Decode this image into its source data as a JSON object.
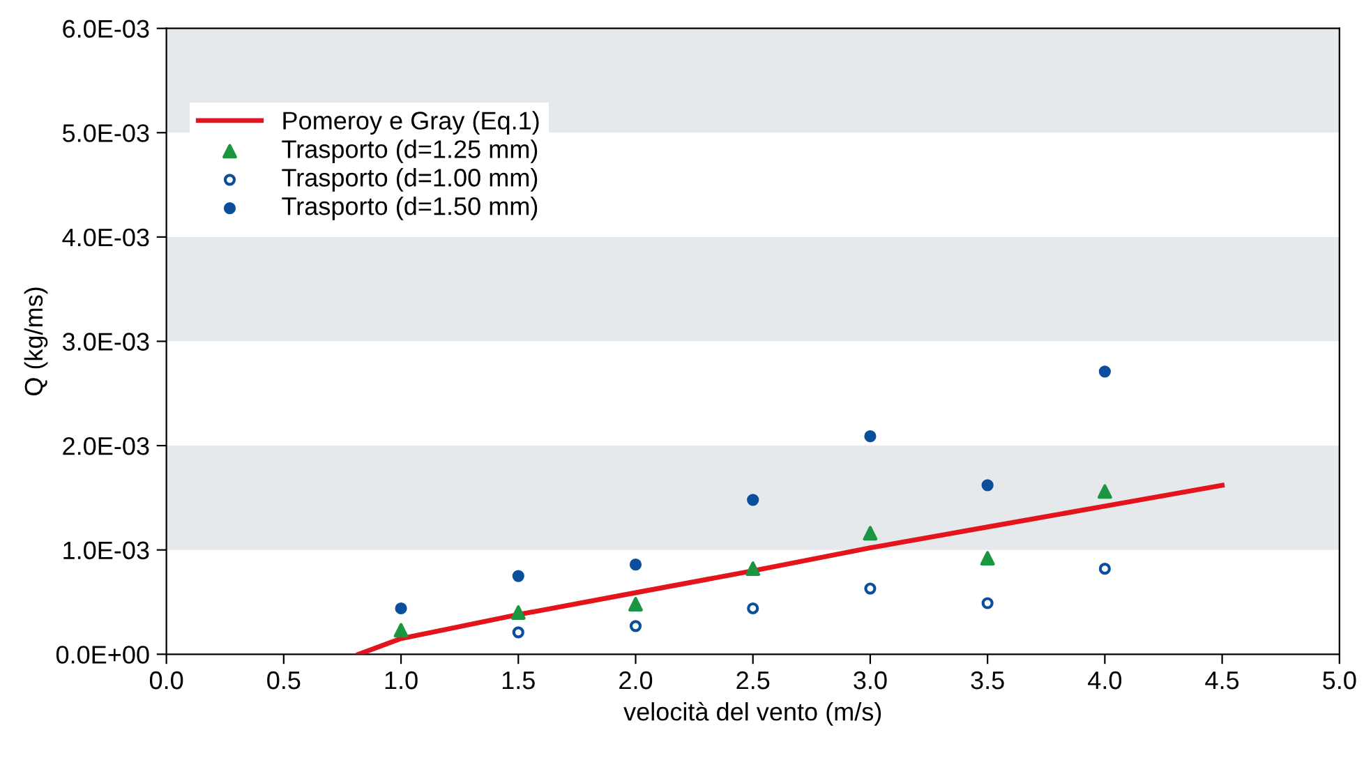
{
  "chart_data": {
    "type": "scatter",
    "xlabel": "velocità del vento (m/s)",
    "ylabel": "Q (kg/ms)",
    "xlim": [
      0,
      5
    ],
    "ylim": [
      0,
      0.006
    ],
    "xticks": [
      {
        "value": 0,
        "label": "0.0"
      },
      {
        "value": 0.5,
        "label": "0.5"
      },
      {
        "value": 1,
        "label": "1.0"
      },
      {
        "value": 1.5,
        "label": "1.5"
      },
      {
        "value": 2,
        "label": "2.0"
      },
      {
        "value": 2.5,
        "label": "2.5"
      },
      {
        "value": 3,
        "label": "3.0"
      },
      {
        "value": 3.5,
        "label": "3.5"
      },
      {
        "value": 4,
        "label": "4.0"
      },
      {
        "value": 4.5,
        "label": "4.5"
      },
      {
        "value": 5,
        "label": "5.0"
      }
    ],
    "yticks": [
      {
        "value": 0,
        "label": "0.0E+00"
      },
      {
        "value": 0.001,
        "label": "1.0E-03"
      },
      {
        "value": 0.002,
        "label": "2.0E-03"
      },
      {
        "value": 0.003,
        "label": "3.0E-03"
      },
      {
        "value": 0.004,
        "label": "4.0E-03"
      },
      {
        "value": 0.005,
        "label": "5.0E-03"
      },
      {
        "value": 0.006,
        "label": "6.0E-03"
      }
    ],
    "bands": [
      {
        "axis": "y",
        "from": 0.001,
        "to": 0.002,
        "color": "#e6e9ec"
      },
      {
        "axis": "y",
        "from": 0.003,
        "to": 0.004,
        "color": "#e6e9ec"
      },
      {
        "axis": "y",
        "from": 0.005,
        "to": 0.006,
        "color": "#e6e9ec"
      }
    ],
    "legend": "top left",
    "grid": false,
    "series": [
      {
        "name": "Pomeroy e Gray (Eq.1)",
        "type": "line",
        "color": "#e3141b",
        "marker": "none",
        "x": [
          0.82,
          1.0,
          1.5,
          2.0,
          2.5,
          3.0,
          3.5,
          4.0,
          4.5
        ],
        "values": [
          0.0,
          0.00015,
          0.00038,
          0.00059,
          0.0008,
          0.00102,
          0.00122,
          0.00142,
          0.00162
        ]
      },
      {
        "name": "Trasporto (d=1.25 mm)",
        "type": "scatter",
        "color": "#1a9640",
        "marker": "triangle",
        "x": [
          1.0,
          1.5,
          2.0,
          2.5,
          3.0,
          3.5,
          4.0
        ],
        "values": [
          0.00023,
          0.0004,
          0.00048,
          0.00082,
          0.00116,
          0.00092,
          0.00156
        ]
      },
      {
        "name": "Trasporto (d=1.00 mm)",
        "type": "scatter",
        "color": "#0b4f9c",
        "marker": "open circle",
        "x": [
          1.5,
          2.0,
          2.5,
          3.0,
          3.5,
          4.0
        ],
        "values": [
          0.00021,
          0.00027,
          0.00044,
          0.00063,
          0.00049,
          0.00082
        ]
      },
      {
        "name": "Trasporto (d=1.50 mm)",
        "type": "scatter",
        "color": "#0b4f9c",
        "marker": "circle",
        "x": [
          1.0,
          1.5,
          2.0,
          2.5,
          3.0,
          3.5,
          4.0
        ],
        "values": [
          0.00044,
          0.00075,
          0.00086,
          0.00148,
          0.00209,
          0.00162,
          0.00271
        ]
      }
    ]
  }
}
